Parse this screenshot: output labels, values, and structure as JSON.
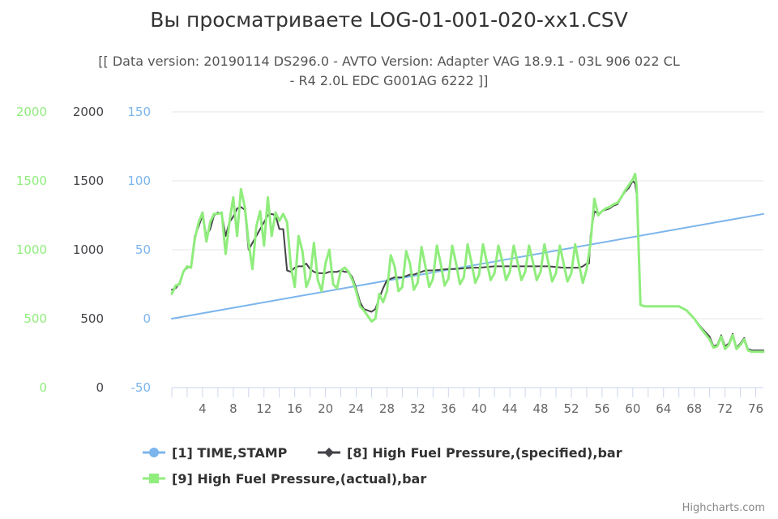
{
  "chart_data": {
    "type": "line",
    "title": "Вы просматриваете LOG-01-001-020-xx1.CSV",
    "subtitle_line1": "[[ Data version: 20190114 DS296.0 - AVTO Version: Adapter VAG 18.9.1 - 03L 906 022 CL",
    "subtitle_line2": "- R4 2.0L EDC G001AG 6222 ]]",
    "credits": "Highcharts.com",
    "x_ticks": [
      4,
      8,
      12,
      16,
      20,
      24,
      28,
      32,
      36,
      40,
      44,
      48,
      52,
      56,
      60,
      64,
      68,
      72,
      76
    ],
    "x_range": [
      0,
      77
    ],
    "y_axes": [
      {
        "id": "ax9",
        "ticks": [
          "0",
          "500",
          "1000",
          "1500",
          "2000"
        ],
        "tick_values": [
          0,
          500,
          1000,
          1500,
          2000
        ],
        "range": [
          0,
          2000
        ],
        "color": "#90ed7d"
      },
      {
        "id": "ax8",
        "ticks": [
          "0",
          "500",
          "1000",
          "1500",
          "2000"
        ],
        "tick_values": [
          0,
          500,
          1000,
          1500,
          2000
        ],
        "range": [
          0,
          2000
        ],
        "color": "#434348"
      },
      {
        "id": "ax1",
        "ticks": [
          "-50",
          "0",
          "50",
          "100",
          "150"
        ],
        "tick_values": [
          -50,
          0,
          50,
          100,
          150
        ],
        "range": [
          -50,
          150
        ],
        "color": "#7cb5ec"
      }
    ],
    "series": [
      {
        "name": "[1] TIME,STAMP",
        "color": "#7cb5ec",
        "axis": "ax1",
        "points": [
          [
            0,
            0
          ],
          [
            77,
            76
          ]
        ]
      },
      {
        "name": "[8] High Fuel Pressure,(specified),bar",
        "color": "#434348",
        "axis": "ax8",
        "points": [
          [
            0,
            710
          ],
          [
            0.5,
            720
          ],
          [
            1,
            760
          ],
          [
            1.5,
            840
          ],
          [
            2,
            870
          ],
          [
            2.5,
            880
          ],
          [
            3,
            1100
          ],
          [
            3.5,
            1170
          ],
          [
            4,
            1250
          ],
          [
            4.5,
            1100
          ],
          [
            5,
            1150
          ],
          [
            5.5,
            1250
          ],
          [
            6,
            1270
          ],
          [
            6.5,
            1260
          ],
          [
            7,
            1100
          ],
          [
            7.5,
            1200
          ],
          [
            8,
            1240
          ],
          [
            8.5,
            1300
          ],
          [
            9,
            1310
          ],
          [
            9.5,
            1290
          ],
          [
            10,
            1000
          ],
          [
            10.5,
            1050
          ],
          [
            11,
            1100
          ],
          [
            11.5,
            1150
          ],
          [
            12,
            1200
          ],
          [
            12.5,
            1250
          ],
          [
            13,
            1260
          ],
          [
            13.5,
            1250
          ],
          [
            14,
            1150
          ],
          [
            14.5,
            1150
          ],
          [
            15,
            850
          ],
          [
            15.5,
            840
          ],
          [
            16,
            870
          ],
          [
            16.5,
            880
          ],
          [
            17,
            880
          ],
          [
            17.5,
            900
          ],
          [
            18,
            860
          ],
          [
            18.5,
            840
          ],
          [
            19,
            830
          ],
          [
            19.5,
            830
          ],
          [
            20,
            830
          ],
          [
            20.5,
            840
          ],
          [
            21,
            840
          ],
          [
            21.5,
            840
          ],
          [
            22,
            850
          ],
          [
            22.5,
            840
          ],
          [
            23,
            840
          ],
          [
            23.5,
            800
          ],
          [
            24,
            720
          ],
          [
            24.5,
            620
          ],
          [
            25,
            570
          ],
          [
            25.5,
            560
          ],
          [
            26,
            550
          ],
          [
            26.5,
            570
          ],
          [
            27,
            650
          ],
          [
            27.5,
            720
          ],
          [
            28,
            780
          ],
          [
            28.5,
            790
          ],
          [
            29,
            800
          ],
          [
            29.5,
            800
          ],
          [
            30,
            800
          ],
          [
            30.5,
            810
          ],
          [
            31,
            820
          ],
          [
            31.5,
            820
          ],
          [
            32,
            830
          ],
          [
            32.5,
            840
          ],
          [
            33,
            850
          ],
          [
            33.5,
            850
          ],
          [
            34,
            850
          ],
          [
            35,
            855
          ],
          [
            36,
            860
          ],
          [
            37,
            860
          ],
          [
            38,
            865
          ],
          [
            39,
            870
          ],
          [
            40,
            870
          ],
          [
            41,
            875
          ],
          [
            42,
            880
          ],
          [
            43,
            880
          ],
          [
            44,
            880
          ],
          [
            45,
            880
          ],
          [
            46,
            880
          ],
          [
            47,
            880
          ],
          [
            48,
            880
          ],
          [
            49,
            880
          ],
          [
            50,
            875
          ],
          [
            51,
            870
          ],
          [
            52,
            870
          ],
          [
            53,
            870
          ],
          [
            53.5,
            880
          ],
          [
            54,
            900
          ],
          [
            54.3,
            900
          ],
          [
            54.5,
            1100
          ],
          [
            55,
            1280
          ],
          [
            55.5,
            1260
          ],
          [
            56,
            1280
          ],
          [
            56.5,
            1290
          ],
          [
            57,
            1300
          ],
          [
            57.5,
            1320
          ],
          [
            58,
            1330
          ],
          [
            58.5,
            1380
          ],
          [
            59,
            1420
          ],
          [
            59.5,
            1450
          ],
          [
            60,
            1500
          ],
          [
            60.3,
            1480
          ],
          [
            60.5,
            1400
          ],
          [
            61,
            600
          ],
          [
            61.5,
            590
          ],
          [
            62,
            590
          ],
          [
            63,
            590
          ],
          [
            64,
            590
          ],
          [
            65,
            590
          ],
          [
            66,
            590
          ],
          [
            67,
            560
          ],
          [
            68,
            500
          ],
          [
            69,
            430
          ],
          [
            70,
            370
          ],
          [
            70.5,
            300
          ],
          [
            71,
            310
          ],
          [
            71.5,
            380
          ],
          [
            72,
            300
          ],
          [
            72.5,
            320
          ],
          [
            73,
            390
          ],
          [
            73.5,
            290
          ],
          [
            74,
            320
          ],
          [
            74.5,
            360
          ],
          [
            75,
            280
          ],
          [
            75.5,
            270
          ],
          [
            76,
            270
          ],
          [
            77,
            270
          ]
        ]
      },
      {
        "name": "[9] High Fuel Pressure,(actual),bar",
        "color": "#90ed7d",
        "axis": "ax9",
        "points": [
          [
            0,
            680
          ],
          [
            0.5,
            740
          ],
          [
            1,
            750
          ],
          [
            1.5,
            840
          ],
          [
            2,
            880
          ],
          [
            2.5,
            870
          ],
          [
            3,
            1080
          ],
          [
            3.5,
            1200
          ],
          [
            4,
            1270
          ],
          [
            4.5,
            1060
          ],
          [
            5,
            1200
          ],
          [
            5.5,
            1260
          ],
          [
            6,
            1260
          ],
          [
            6.5,
            1270
          ],
          [
            7,
            970
          ],
          [
            7.5,
            1200
          ],
          [
            8,
            1380
          ],
          [
            8.5,
            1100
          ],
          [
            9,
            1440
          ],
          [
            9.5,
            1310
          ],
          [
            10,
            1050
          ],
          [
            10.5,
            860
          ],
          [
            11,
            1170
          ],
          [
            11.5,
            1280
          ],
          [
            12,
            1030
          ],
          [
            12.5,
            1380
          ],
          [
            13,
            1100
          ],
          [
            13.5,
            1270
          ],
          [
            14,
            1210
          ],
          [
            14.5,
            1260
          ],
          [
            15,
            1200
          ],
          [
            15.5,
            880
          ],
          [
            16,
            730
          ],
          [
            16.5,
            1100
          ],
          [
            17,
            990
          ],
          [
            17.5,
            730
          ],
          [
            18,
            800
          ],
          [
            18.5,
            1050
          ],
          [
            19,
            780
          ],
          [
            19.5,
            700
          ],
          [
            20,
            900
          ],
          [
            20.5,
            1000
          ],
          [
            21,
            750
          ],
          [
            21.5,
            720
          ],
          [
            22,
            850
          ],
          [
            22.5,
            870
          ],
          [
            23,
            840
          ],
          [
            23.5,
            780
          ],
          [
            24,
            700
          ],
          [
            24.5,
            590
          ],
          [
            25,
            560
          ],
          [
            25.5,
            520
          ],
          [
            26,
            480
          ],
          [
            26.5,
            500
          ],
          [
            27,
            680
          ],
          [
            27.5,
            620
          ],
          [
            28,
            700
          ],
          [
            28.5,
            960
          ],
          [
            29,
            880
          ],
          [
            29.5,
            700
          ],
          [
            30,
            730
          ],
          [
            30.5,
            990
          ],
          [
            31,
            900
          ],
          [
            31.5,
            710
          ],
          [
            32,
            760
          ],
          [
            32.5,
            1020
          ],
          [
            33,
            880
          ],
          [
            33.5,
            730
          ],
          [
            34,
            790
          ],
          [
            34.5,
            1030
          ],
          [
            35,
            900
          ],
          [
            35.5,
            740
          ],
          [
            36,
            790
          ],
          [
            36.5,
            1030
          ],
          [
            37,
            900
          ],
          [
            37.5,
            750
          ],
          [
            38,
            800
          ],
          [
            38.5,
            1040
          ],
          [
            39,
            910
          ],
          [
            39.5,
            760
          ],
          [
            40,
            820
          ],
          [
            40.5,
            1040
          ],
          [
            41,
            910
          ],
          [
            41.5,
            780
          ],
          [
            42,
            830
          ],
          [
            42.5,
            1030
          ],
          [
            43,
            920
          ],
          [
            43.5,
            780
          ],
          [
            44,
            840
          ],
          [
            44.5,
            1030
          ],
          [
            45,
            910
          ],
          [
            45.5,
            780
          ],
          [
            46,
            840
          ],
          [
            46.5,
            1030
          ],
          [
            47,
            910
          ],
          [
            47.5,
            780
          ],
          [
            48,
            840
          ],
          [
            48.5,
            1040
          ],
          [
            49,
            910
          ],
          [
            49.5,
            770
          ],
          [
            50,
            830
          ],
          [
            50.5,
            1030
          ],
          [
            51,
            900
          ],
          [
            51.5,
            770
          ],
          [
            52,
            830
          ],
          [
            52.5,
            1040
          ],
          [
            53,
            890
          ],
          [
            53.5,
            760
          ],
          [
            54,
            860
          ],
          [
            54.5,
            1050
          ],
          [
            55,
            1370
          ],
          [
            55.5,
            1250
          ],
          [
            56,
            1280
          ],
          [
            56.5,
            1300
          ],
          [
            57,
            1310
          ],
          [
            57.5,
            1330
          ],
          [
            58,
            1340
          ],
          [
            58.5,
            1380
          ],
          [
            59,
            1430
          ],
          [
            59.5,
            1470
          ],
          [
            60,
            1510
          ],
          [
            60.3,
            1550
          ],
          [
            60.5,
            1460
          ],
          [
            61,
            600
          ],
          [
            61.5,
            590
          ],
          [
            62,
            590
          ],
          [
            63,
            590
          ],
          [
            64,
            590
          ],
          [
            65,
            590
          ],
          [
            66,
            590
          ],
          [
            67,
            560
          ],
          [
            68,
            500
          ],
          [
            69,
            420
          ],
          [
            70,
            350
          ],
          [
            70.5,
            290
          ],
          [
            71,
            300
          ],
          [
            71.5,
            370
          ],
          [
            72,
            280
          ],
          [
            72.5,
            310
          ],
          [
            73,
            380
          ],
          [
            73.5,
            280
          ],
          [
            74,
            310
          ],
          [
            74.5,
            350
          ],
          [
            75,
            270
          ],
          [
            75.5,
            260
          ],
          [
            76,
            260
          ],
          [
            77,
            260
          ]
        ]
      }
    ],
    "legend": {
      "items": [
        "[1] TIME,STAMP",
        "[8] High Fuel Pressure,(specified),bar",
        "[9] High Fuel Pressure,(actual),bar"
      ],
      "placement": "bottom-center"
    }
  }
}
